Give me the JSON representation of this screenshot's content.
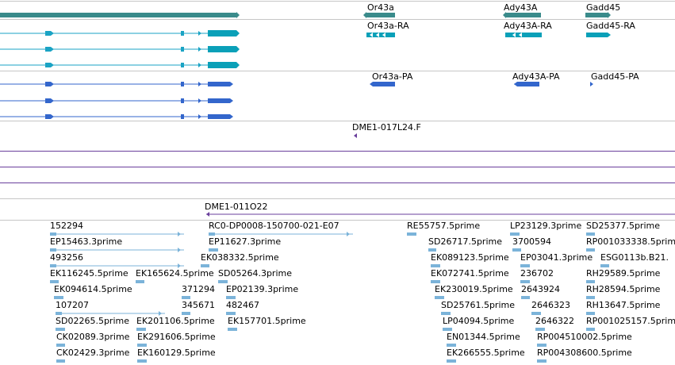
{
  "colors": {
    "track_border": "#c6c6c6",
    "gene": "#3a8b8b",
    "transcript_thin": "#1aa3c4",
    "transcript_thick": "#0aa0b8",
    "protein": "#3366cc",
    "clone": "#6a3f9c",
    "est": "#7bb3d9"
  },
  "genes": [
    {
      "name": "Or43a"
    },
    {
      "name": "Ady43A"
    },
    {
      "name": "Gadd45"
    }
  ],
  "transcripts": [
    {
      "name": "Or43a-RA"
    },
    {
      "name": "Ady43A-RA"
    },
    {
      "name": "Gadd45-RA"
    }
  ],
  "proteins": [
    {
      "name": "Or43a-PA"
    },
    {
      "name": "Ady43A-PA"
    },
    {
      "name": "Gadd45-PA"
    }
  ],
  "clones": [
    {
      "name": "DME1-017L24.F"
    },
    {
      "name": "DME1-011O22"
    }
  ],
  "est_labels": [
    "152294",
    "RC0-DP0008-150700-021-E07",
    "RE55757.5prime",
    "LP23129.3prime",
    "SD25377.5prime",
    "EP15463.3prime",
    "EP11627.3prime",
    "SD26717.5prime",
    "3700594",
    "RP001033338.5prime",
    "493256",
    "EK038332.5prime",
    "EK089123.5prime",
    "EP03041.3prime",
    "ESG0113b.B21.",
    "EK116245.5prime",
    "EK165624.5prime",
    "SD05264.3prime",
    "EK072741.5prime",
    "236702",
    "RH29589.5prime",
    "EK094614.5prime",
    "371294",
    "EP02139.3prime",
    "EK230019.5prime",
    "2643924",
    "RH28594.5prime",
    "107207",
    "345671",
    "482467",
    "SD25761.5prime",
    "2646323",
    "RH13647.5prime",
    "SD02265.5prime",
    "EK201106.5prime",
    "EK157701.5prime",
    "LP04094.5prime",
    "2646322",
    "RP001025157.5prime",
    "CK02089.3prime",
    "EK291606.5prime",
    "EN01344.5prime",
    "RP004510002.5prime",
    "CK02429.3prime",
    "EK160129.5prime",
    "EK266555.5prime",
    "RP004308600.5prime"
  ]
}
